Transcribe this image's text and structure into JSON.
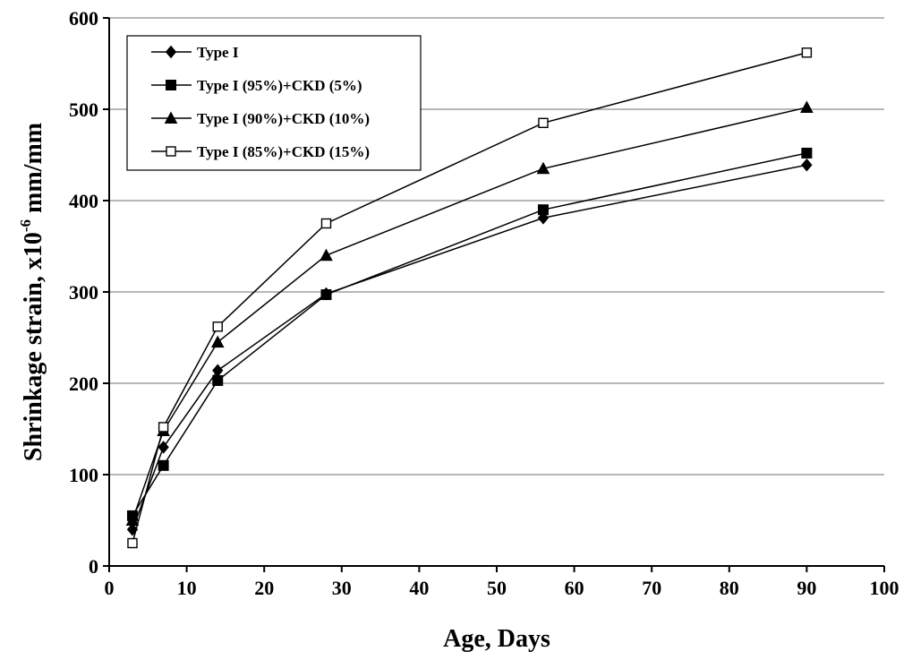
{
  "chart_data": {
    "type": "line",
    "title": "",
    "xlabel": "Age,  Days",
    "ylabel_main": "Shrinkage strain,  x10",
    "ylabel_sup": "-6",
    "ylabel_unit": " mm/mm",
    "xlim": [
      0,
      100
    ],
    "ylim": [
      0,
      600
    ],
    "xticks": [
      0,
      10,
      20,
      30,
      40,
      50,
      60,
      70,
      80,
      90,
      100
    ],
    "yticks": [
      0,
      100,
      200,
      300,
      400,
      500,
      600
    ],
    "grid": "horizontal",
    "legend_position": "top-left",
    "x": [
      3,
      7,
      14,
      28,
      56,
      90
    ],
    "series": [
      {
        "name": "Type I",
        "marker": "diamond-filled",
        "color": "#000000",
        "values": [
          40,
          130,
          214,
          298,
          381,
          439
        ]
      },
      {
        "name": "Type I (95%)+CKD (5%)",
        "marker": "square-filled",
        "color": "#000000",
        "values": [
          55,
          110,
          203,
          297,
          390,
          452
        ]
      },
      {
        "name": "Type I (90%)+CKD (10%)",
        "marker": "triangle-filled",
        "color": "#000000",
        "values": [
          50,
          148,
          245,
          340,
          435,
          502
        ]
      },
      {
        "name": "Type I (85%)+CKD (15%)",
        "marker": "square-open",
        "color": "#000000",
        "values": [
          25,
          152,
          262,
          375,
          485,
          562
        ]
      }
    ]
  }
}
